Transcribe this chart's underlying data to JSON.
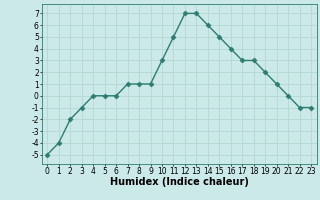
{
  "x": [
    0,
    1,
    2,
    3,
    4,
    5,
    6,
    7,
    8,
    9,
    10,
    11,
    12,
    13,
    14,
    15,
    16,
    17,
    18,
    19,
    20,
    21,
    22,
    23
  ],
  "y": [
    -5,
    -4,
    -2,
    -1,
    0,
    0,
    0,
    1,
    1,
    1,
    3,
    5,
    7,
    7,
    6,
    5,
    4,
    3,
    3,
    2,
    1,
    0,
    -1,
    -1
  ],
  "line_color": "#2e7d6e",
  "marker": "D",
  "marker_size": 2.5,
  "bg_color": "#cbe9e9",
  "grid_color": "#b0d4cc",
  "xlabel": "Humidex (Indice chaleur)",
  "xlim": [
    -0.5,
    23.5
  ],
  "ylim": [
    -5.8,
    7.8
  ],
  "yticks": [
    -5,
    -4,
    -3,
    -2,
    -1,
    0,
    1,
    2,
    3,
    4,
    5,
    6,
    7
  ],
  "xticks": [
    0,
    1,
    2,
    3,
    4,
    5,
    6,
    7,
    8,
    9,
    10,
    11,
    12,
    13,
    14,
    15,
    16,
    17,
    18,
    19,
    20,
    21,
    22,
    23
  ],
  "tick_fontsize": 5.5,
  "xlabel_fontsize": 7,
  "linewidth": 1.0
}
